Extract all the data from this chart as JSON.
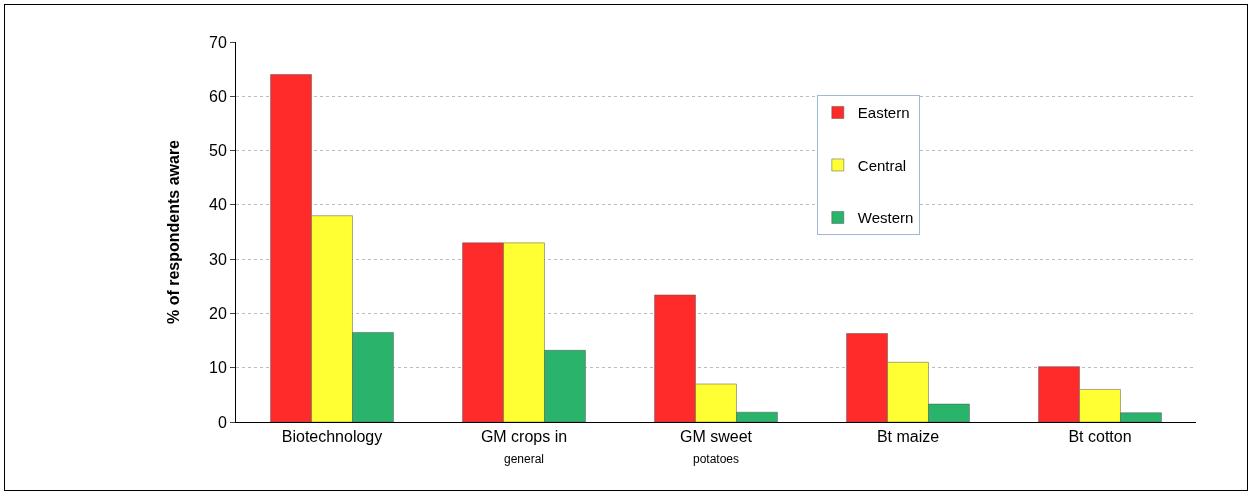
{
  "chart_data": {
    "type": "bar",
    "ylabel": "% of respondents aware",
    "categories": [
      "Biotechnology",
      "GM crops in\ngeneral",
      "GM sweet\npotatoes",
      "Bt maize",
      "Bt cotton"
    ],
    "series": [
      {
        "name": "Eastern",
        "color": "#ff2a2a",
        "values": [
          64,
          33,
          23.4,
          16.3,
          10.2
        ]
      },
      {
        "name": "Central",
        "color": "#ffff33",
        "values": [
          38,
          33,
          7,
          11,
          6
        ]
      },
      {
        "name": "Western",
        "color": "#2ab36a",
        "values": [
          16.5,
          13.2,
          1.8,
          3.3,
          1.7
        ]
      }
    ],
    "ylim": [
      0,
      70
    ],
    "yticks": [
      0,
      10,
      20,
      30,
      40,
      50,
      60,
      70
    ],
    "grid": "y",
    "legend": "top right"
  }
}
